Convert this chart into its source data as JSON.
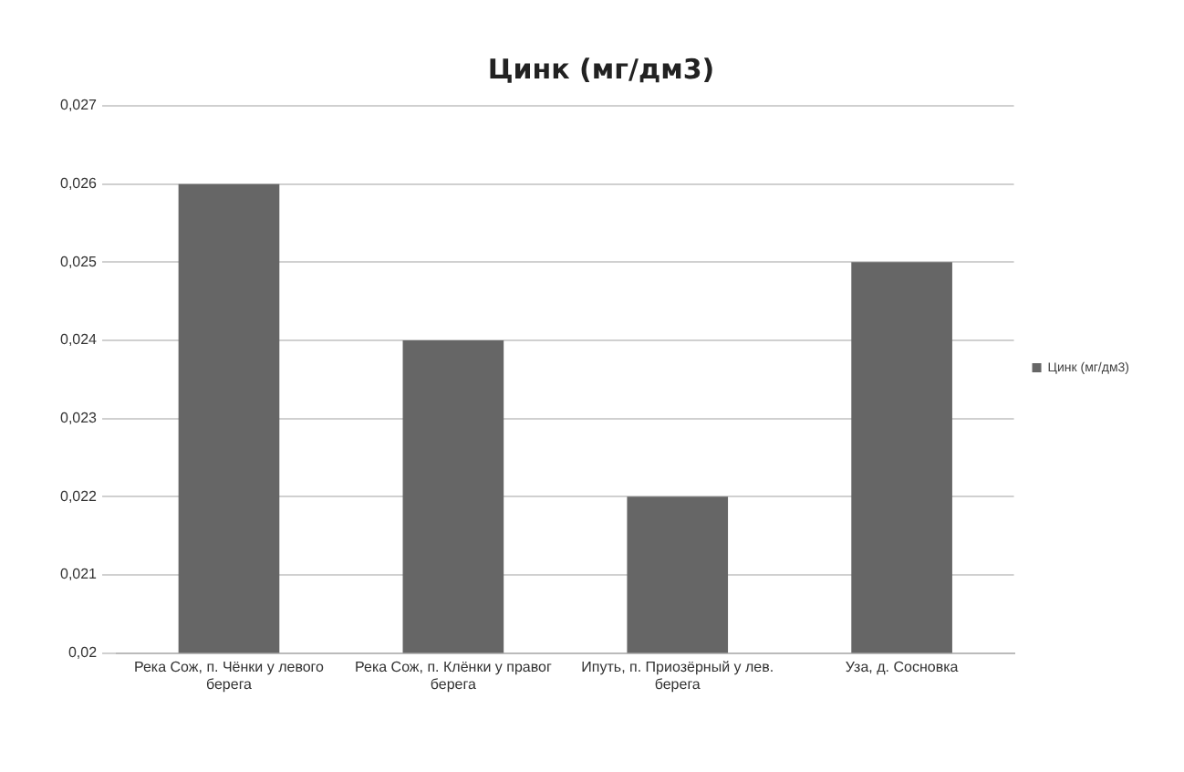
{
  "chart_data": {
    "type": "bar",
    "title": "Цинк (мг/дм3)",
    "categories": [
      "Река Сож, п. Чёнки у левого берега",
      "Река Сож, п. Клёнки у правог берега",
      "Ипуть, п. Приозёрный у лев. берега",
      "Уза, д. Сосновка"
    ],
    "series": [
      {
        "name": "Цинк (мг/дм3)",
        "color": "#666666",
        "values": [
          0.026,
          0.024,
          0.022,
          0.025
        ]
      }
    ],
    "ylim": [
      0.02,
      0.027
    ],
    "yticks": [
      {
        "value": 0.02,
        "label": "0,02"
      },
      {
        "value": 0.021,
        "label": "0,021"
      },
      {
        "value": 0.022,
        "label": "0,022"
      },
      {
        "value": 0.023,
        "label": "0,023"
      },
      {
        "value": 0.024,
        "label": "0,024"
      },
      {
        "value": 0.025,
        "label": "0,025"
      },
      {
        "value": 0.026,
        "label": "0,026"
      },
      {
        "value": 0.027,
        "label": "0,027"
      }
    ],
    "grid": "y",
    "legend": "right"
  }
}
